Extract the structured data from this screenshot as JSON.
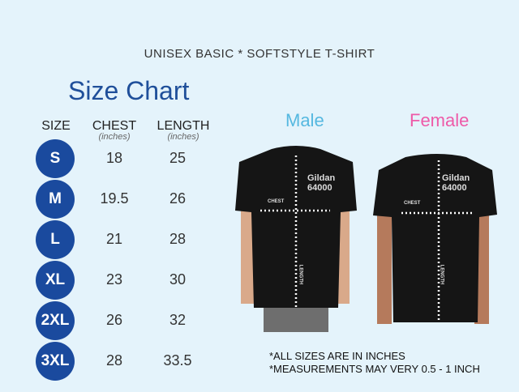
{
  "title": "UNISEX BASIC * SOFTSTYLE T-SHIRT",
  "chart_title": "Size Chart",
  "headers": {
    "size": "SIZE",
    "chest": "CHEST",
    "chest_unit": "(inches)",
    "length": "LENGTH",
    "length_unit": "(inches)"
  },
  "rows": [
    {
      "size": "S",
      "chest": "18",
      "length": "25"
    },
    {
      "size": "M",
      "chest": "19.5",
      "length": "26"
    },
    {
      "size": "L",
      "chest": "21",
      "length": "28"
    },
    {
      "size": "XL",
      "chest": "23",
      "length": "30"
    },
    {
      "size": "2XL",
      "chest": "26",
      "length": "32"
    },
    {
      "size": "3XL",
      "chest": "28",
      "length": "33.5"
    }
  ],
  "male": {
    "label": "Male",
    "color": "#55b8e0",
    "brand": "Gildan",
    "model": "64000",
    "chest": "CHEST",
    "length": "LENGTH"
  },
  "female": {
    "label": "Female",
    "color": "#ee5aa8",
    "brand": "Gildan",
    "model": "64000",
    "chest": "CHEST",
    "length": "LENGTH"
  },
  "notes": [
    "*ALL SIZES ARE IN INCHES",
    "*MEASUREMENTS MAY VERY 0.5 - 1 INCH"
  ],
  "colors": {
    "background": "#e4f3fb",
    "size_badge": "#1a4a9e",
    "title": "#1f4f9a"
  }
}
